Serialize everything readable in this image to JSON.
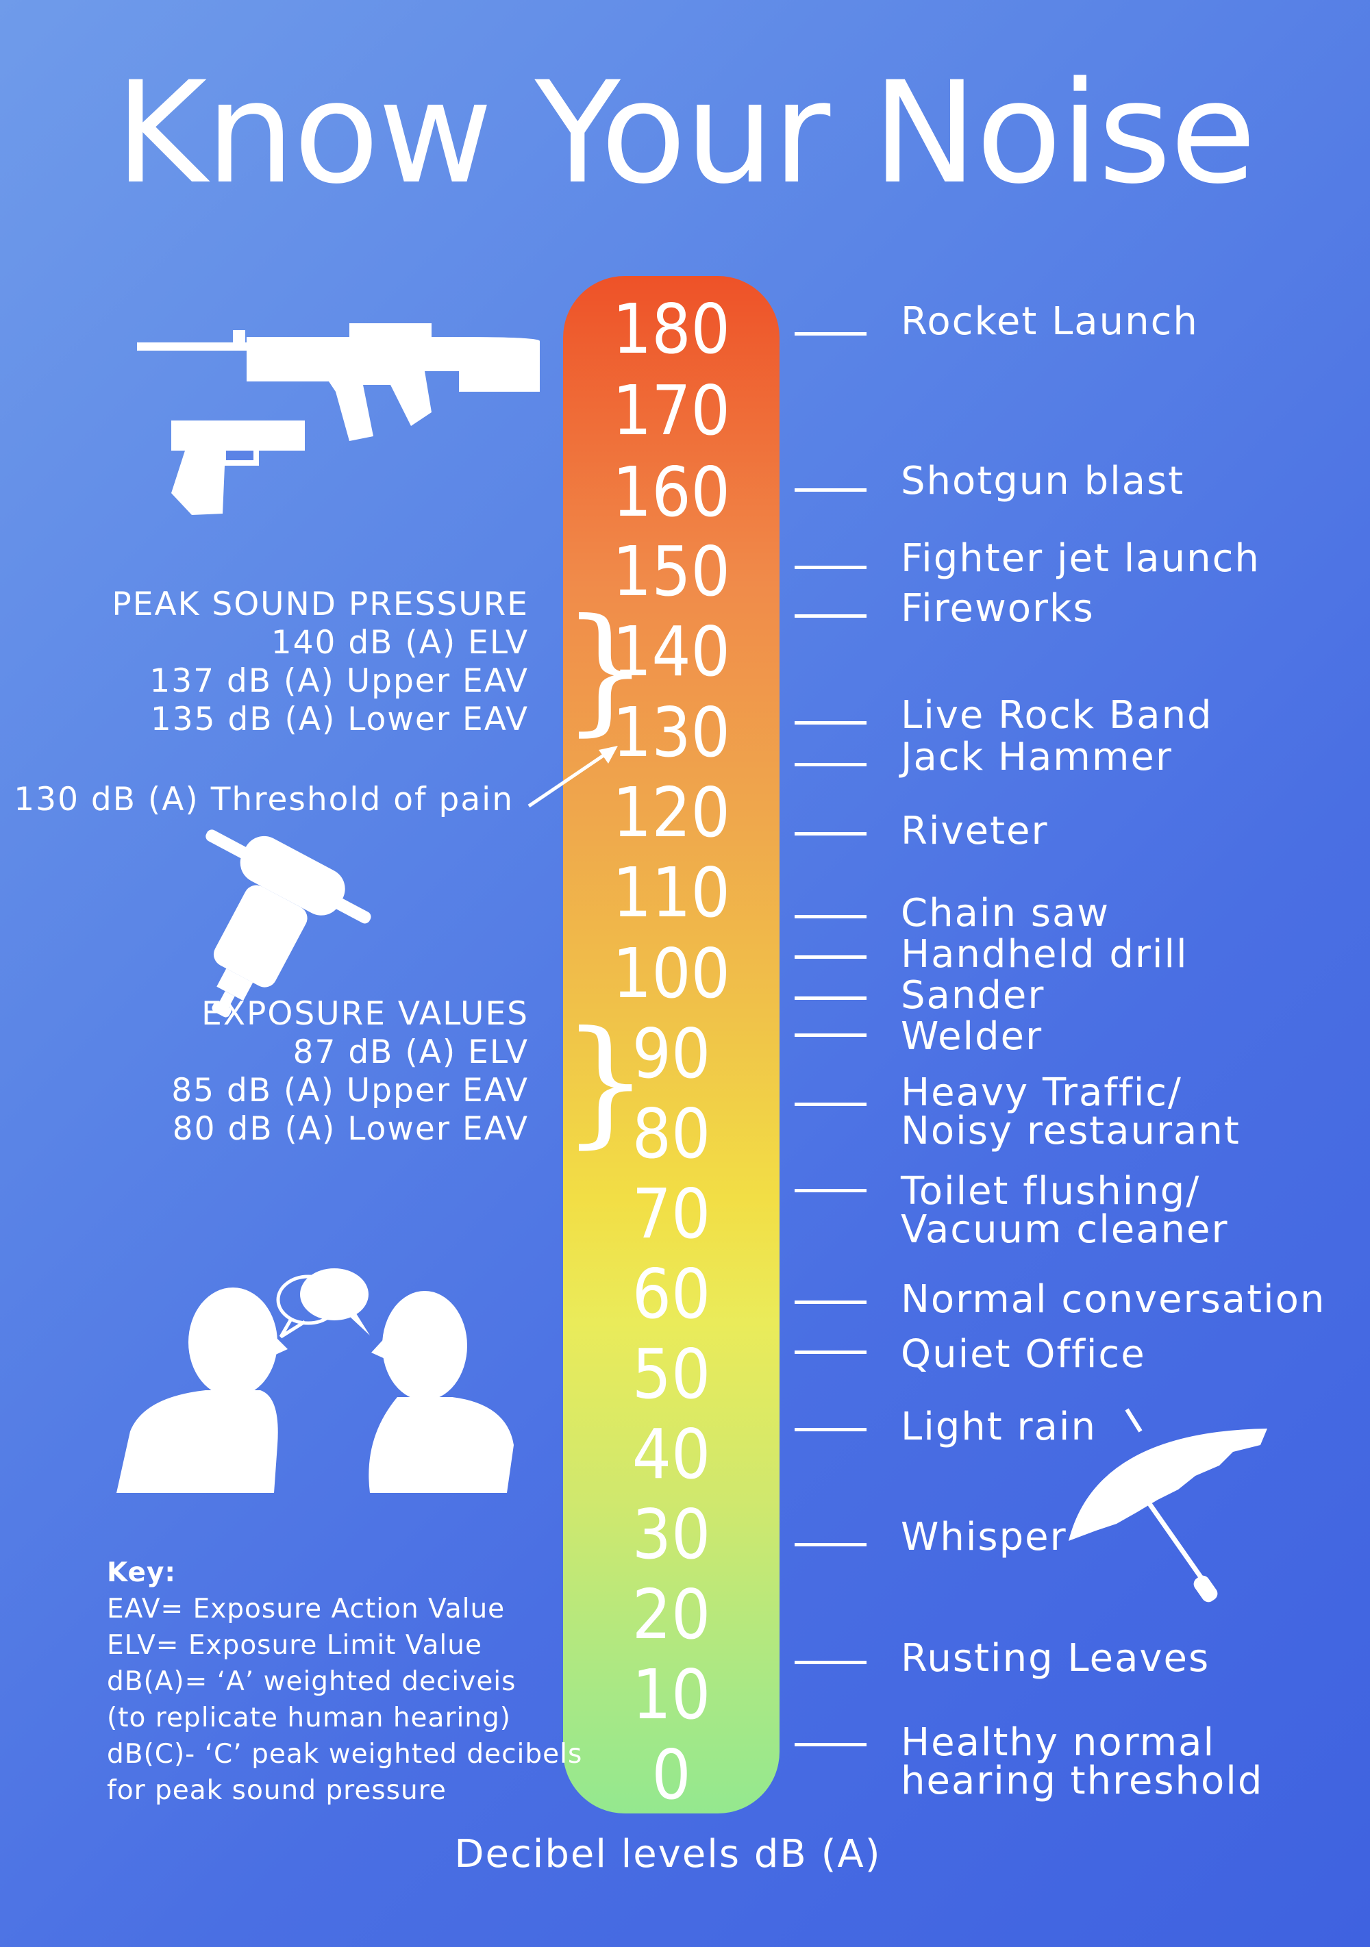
{
  "title": "Know Your Noise",
  "axis_label": "Decibel levels dB (A)",
  "scale_values": [
    "180",
    "170",
    "160",
    "150",
    "140",
    "130",
    "120",
    "110",
    "100",
    "90",
    "80",
    "70",
    "60",
    "50",
    "40",
    "30",
    "20",
    "10",
    "0"
  ],
  "sources": [
    {
      "line1": "Rocket Launch",
      "line2": ""
    },
    {
      "line1": "Shotgun blast",
      "line2": ""
    },
    {
      "line1": "Fighter jet launch",
      "line2": ""
    },
    {
      "line1": "Fireworks",
      "line2": ""
    },
    {
      "line1": "Live Rock Band",
      "line2": ""
    },
    {
      "line1": "Jack Hammer",
      "line2": ""
    },
    {
      "line1": "Riveter",
      "line2": ""
    },
    {
      "line1": "Chain saw",
      "line2": ""
    },
    {
      "line1": "Handheld drill",
      "line2": ""
    },
    {
      "line1": "Sander",
      "line2": ""
    },
    {
      "line1": "Welder",
      "line2": ""
    },
    {
      "line1": "Heavy Traffic/",
      "line2": "Noisy restaurant"
    },
    {
      "line1": "Toilet flushing/",
      "line2": "Vacuum cleaner"
    },
    {
      "line1": "Normal conversation",
      "line2": ""
    },
    {
      "line1": "Quiet Office",
      "line2": ""
    },
    {
      "line1": "Light rain",
      "line2": ""
    },
    {
      "line1": "Whisper",
      "line2": ""
    },
    {
      "line1": "Rusting Leaves",
      "line2": ""
    },
    {
      "line1": "Healthy normal",
      "line2": "hearing threshold"
    }
  ],
  "peak": {
    "heading": "PEAK SOUND PRESSURE",
    "lines": [
      "140 dB (A) ELV",
      "137 dB (A) Upper EAV",
      "135 dB (A) Lower EAV"
    ]
  },
  "threshold_of_pain": "130 dB (A) Threshold of pain",
  "exposure": {
    "heading": "EXPOSURE VALUES",
    "lines": [
      "87 dB (A) ELV",
      "85 dB (A) Upper EAV",
      "80 dB (A) Lower EAV"
    ]
  },
  "key": {
    "heading": "Key:",
    "lines": [
      "EAV= Exposure Action Value",
      "ELV= Exposure Limit Value",
      "dB(A)= ‘A’ weighted deciveis",
      "(to replicate human hearing)",
      "dB(C)- ‘C’ peak weighted decibels",
      "for peak sound pressure"
    ]
  },
  "icons": [
    "rifle-icon",
    "pistol-icon",
    "jackhammer-icon",
    "conversation-icon",
    "umbrella-icon"
  ],
  "colors": {
    "background": "#4a6fe3",
    "bar_top": "#ee5228",
    "bar_bottom": "#94e88f",
    "text": "#ffffff"
  }
}
